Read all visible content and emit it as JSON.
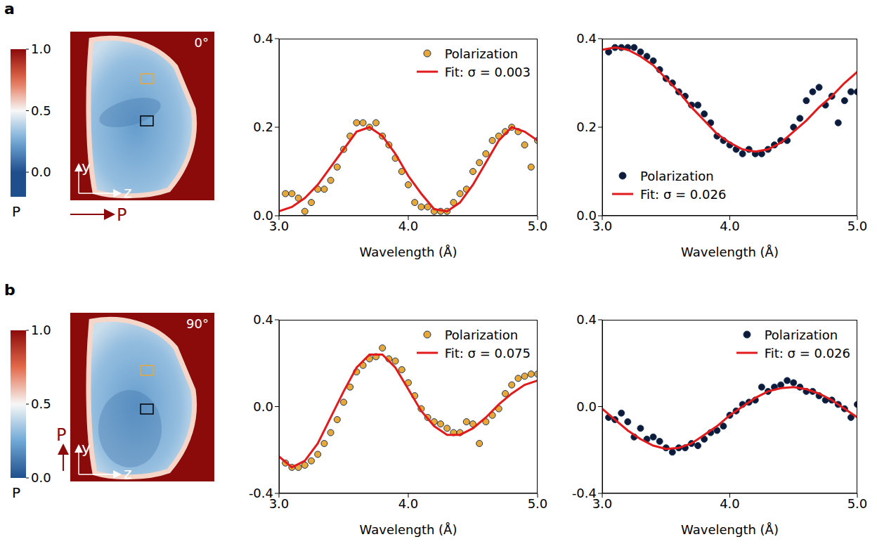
{
  "chart_data": [
    {
      "type": "image",
      "panel_label": "a",
      "annotation": {
        "value": 0,
        "label": "0°"
      },
      "axis_labels": {
        "x": "z",
        "y": "y"
      },
      "arrow_label": "P",
      "colorbar": {
        "label": "P",
        "range": [
          -0.2,
          1.0
        ],
        "ticks": [
          {
            "value": 0,
            "label": "0.0"
          },
          {
            "value": 0.5,
            "label": "0.5"
          },
          {
            "value": 1,
            "label": "1.0"
          }
        ]
      }
    },
    {
      "type": "scatter",
      "xlabel": "Wavelength (Å)",
      "xlim": [
        3.0,
        5.0
      ],
      "xticks": [
        {
          "value": 3,
          "label": "3.0"
        },
        {
          "value": 4,
          "label": "4.0"
        },
        {
          "value": 5,
          "label": "5.0"
        }
      ],
      "ylim": [
        0.0,
        0.4
      ],
      "yticks": [
        {
          "value": 0,
          "label": "0.0"
        },
        {
          "value": 0.2,
          "label": "0.2"
        },
        {
          "value": 0.4,
          "label": "0.4"
        }
      ],
      "legend": "upper right",
      "series": [
        {
          "name": "Polarization",
          "type": "scatter",
          "color": "#e8a838",
          "x": [
            3.05,
            3.1,
            3.15,
            3.2,
            3.25,
            3.3,
            3.35,
            3.4,
            3.45,
            3.5,
            3.55,
            3.6,
            3.65,
            3.7,
            3.75,
            3.8,
            3.85,
            3.9,
            3.95,
            4.0,
            4.05,
            4.1,
            4.15,
            4.2,
            4.25,
            4.3,
            4.35,
            4.4,
            4.45,
            4.5,
            4.55,
            4.6,
            4.65,
            4.7,
            4.75,
            4.8,
            4.85,
            4.9,
            4.95,
            5.0
          ],
          "values": [
            0.05,
            0.05,
            0.04,
            0.01,
            0.03,
            0.06,
            0.06,
            0.08,
            0.11,
            0.15,
            0.18,
            0.21,
            0.21,
            0.2,
            0.21,
            0.18,
            0.16,
            0.13,
            0.1,
            0.07,
            0.03,
            0.02,
            0.02,
            0.01,
            0.01,
            0.01,
            0.03,
            0.05,
            0.06,
            0.1,
            0.12,
            0.14,
            0.17,
            0.18,
            0.19,
            0.2,
            0.19,
            0.16,
            0.11,
            0.17
          ]
        },
        {
          "name": "Fit: σ = 0.003",
          "type": "line",
          "color": "#e31a1c",
          "x": [
            3.0,
            3.1,
            3.2,
            3.3,
            3.4,
            3.5,
            3.6,
            3.7,
            3.8,
            3.9,
            4.0,
            4.1,
            4.2,
            4.3,
            4.4,
            4.5,
            4.6,
            4.7,
            4.8,
            4.9,
            5.0
          ],
          "values": [
            0.01,
            0.02,
            0.04,
            0.07,
            0.11,
            0.15,
            0.19,
            0.2,
            0.18,
            0.14,
            0.09,
            0.05,
            0.015,
            0.01,
            0.03,
            0.07,
            0.12,
            0.17,
            0.2,
            0.19,
            0.17
          ]
        }
      ]
    },
    {
      "type": "scatter",
      "xlabel": "Wavelength (Å)",
      "xlim": [
        3.0,
        5.0
      ],
      "xticks": [
        {
          "value": 3,
          "label": "3.0"
        },
        {
          "value": 4,
          "label": "4.0"
        },
        {
          "value": 5,
          "label": "5.0"
        }
      ],
      "ylim": [
        0.0,
        0.4
      ],
      "yticks": [
        {
          "value": 0,
          "label": "0.0"
        },
        {
          "value": 0.2,
          "label": "0.2"
        },
        {
          "value": 0.4,
          "label": "0.4"
        }
      ],
      "legend": "lower left",
      "series": [
        {
          "name": "Polarization",
          "type": "scatter",
          "color": "#0d1a3a",
          "x": [
            3.05,
            3.1,
            3.15,
            3.2,
            3.25,
            3.3,
            3.35,
            3.4,
            3.45,
            3.5,
            3.55,
            3.6,
            3.65,
            3.7,
            3.75,
            3.8,
            3.85,
            3.9,
            3.95,
            4.0,
            4.05,
            4.1,
            4.15,
            4.2,
            4.25,
            4.3,
            4.35,
            4.4,
            4.45,
            4.5,
            4.55,
            4.6,
            4.65,
            4.7,
            4.75,
            4.8,
            4.85,
            4.9,
            4.95,
            5.0
          ],
          "values": [
            0.37,
            0.38,
            0.38,
            0.38,
            0.38,
            0.37,
            0.36,
            0.35,
            0.33,
            0.31,
            0.3,
            0.28,
            0.27,
            0.25,
            0.25,
            0.23,
            0.21,
            0.18,
            0.17,
            0.16,
            0.15,
            0.14,
            0.15,
            0.14,
            0.14,
            0.15,
            0.16,
            0.17,
            0.17,
            0.2,
            0.22,
            0.26,
            0.28,
            0.29,
            0.25,
            0.27,
            0.21,
            0.26,
            0.28,
            0.28
          ]
        },
        {
          "name": "Fit: σ = 0.026",
          "type": "line",
          "color": "#e31a1c",
          "x": [
            3.0,
            3.1,
            3.2,
            3.3,
            3.4,
            3.5,
            3.6,
            3.7,
            3.8,
            3.9,
            4.0,
            4.1,
            4.2,
            4.3,
            4.4,
            4.5,
            4.6,
            4.7,
            4.8,
            4.9,
            5.0
          ],
          "values": [
            0.375,
            0.38,
            0.375,
            0.36,
            0.34,
            0.31,
            0.28,
            0.245,
            0.215,
            0.185,
            0.165,
            0.15,
            0.145,
            0.15,
            0.165,
            0.19,
            0.215,
            0.245,
            0.27,
            0.3,
            0.325
          ]
        }
      ]
    },
    {
      "type": "image",
      "panel_label": "b",
      "annotation": {
        "value": 90,
        "label": "90°"
      },
      "axis_labels": {
        "x": "z",
        "y": "y"
      },
      "arrow_label": "P",
      "colorbar": {
        "label": "P",
        "range": [
          0.0,
          1.0
        ],
        "ticks": [
          {
            "value": 0,
            "label": "0.0"
          },
          {
            "value": 0.5,
            "label": "0.5"
          },
          {
            "value": 1,
            "label": "1.0"
          }
        ]
      }
    },
    {
      "type": "scatter",
      "xlabel": "Wavelength (Å)",
      "xlim": [
        3.0,
        5.0
      ],
      "xticks": [
        {
          "value": 3,
          "label": "3.0"
        },
        {
          "value": 4,
          "label": "4.0"
        },
        {
          "value": 5,
          "label": "5.0"
        }
      ],
      "ylim": [
        -0.4,
        0.4
      ],
      "yticks": [
        -0.4,
        {
          "value": 0,
          "label": "0.0"
        },
        0.4
      ],
      "legend": "upper right",
      "series": [
        {
          "name": "Polarization",
          "type": "scatter",
          "color": "#e8a838",
          "x": [
            3.05,
            3.1,
            3.15,
            3.2,
            3.25,
            3.3,
            3.35,
            3.4,
            3.45,
            3.5,
            3.55,
            3.6,
            3.65,
            3.7,
            3.75,
            3.8,
            3.85,
            3.9,
            3.95,
            4.0,
            4.05,
            4.1,
            4.15,
            4.2,
            4.25,
            4.3,
            4.35,
            4.4,
            4.45,
            4.5,
            4.55,
            4.6,
            4.65,
            4.7,
            4.75,
            4.8,
            4.85,
            4.9,
            4.95,
            5.0
          ],
          "values": [
            -0.26,
            -0.28,
            -0.28,
            -0.27,
            -0.25,
            -0.22,
            -0.17,
            -0.12,
            -0.06,
            0.02,
            0.09,
            0.16,
            0.19,
            0.22,
            0.23,
            0.27,
            0.22,
            0.21,
            0.17,
            0.11,
            0.05,
            -0.01,
            -0.05,
            -0.07,
            -0.08,
            -0.1,
            -0.12,
            -0.12,
            -0.07,
            -0.08,
            -0.17,
            -0.07,
            -0.04,
            -0.01,
            0.06,
            0.1,
            0.13,
            0.14,
            0.15,
            0.15
          ]
        },
        {
          "name": "Fit: σ = 0.075",
          "type": "line",
          "color": "#e31a1c",
          "x": [
            3.0,
            3.1,
            3.2,
            3.3,
            3.4,
            3.5,
            3.6,
            3.7,
            3.8,
            3.9,
            4.0,
            4.1,
            4.2,
            4.3,
            4.4,
            4.5,
            4.6,
            4.7,
            4.8,
            4.9,
            5.0
          ],
          "values": [
            -0.23,
            -0.28,
            -0.25,
            -0.17,
            -0.05,
            0.07,
            0.18,
            0.24,
            0.24,
            0.18,
            0.08,
            -0.02,
            -0.09,
            -0.13,
            -0.13,
            -0.1,
            -0.05,
            0.01,
            0.06,
            0.1,
            0.12
          ]
        }
      ]
    },
    {
      "type": "scatter",
      "xlabel": "Wavelength (Å)",
      "xlim": [
        3.0,
        5.0
      ],
      "xticks": [
        {
          "value": 3,
          "label": "3.0"
        },
        {
          "value": 4,
          "label": "4.0"
        },
        {
          "value": 5,
          "label": "5.0"
        }
      ],
      "ylim": [
        -0.4,
        0.4
      ],
      "yticks": [
        -0.4,
        {
          "value": 0,
          "label": "0.0"
        },
        0.4
      ],
      "legend": "upper right",
      "series": [
        {
          "name": "Polarization",
          "type": "scatter",
          "color": "#0d1a3a",
          "x": [
            3.05,
            3.1,
            3.15,
            3.2,
            3.25,
            3.3,
            3.35,
            3.4,
            3.45,
            3.5,
            3.55,
            3.6,
            3.65,
            3.7,
            3.75,
            3.8,
            3.85,
            3.9,
            3.95,
            4.0,
            4.05,
            4.1,
            4.15,
            4.2,
            4.25,
            4.3,
            4.35,
            4.4,
            4.45,
            4.5,
            4.55,
            4.6,
            4.65,
            4.7,
            4.75,
            4.8,
            4.85,
            4.9,
            4.95,
            5.0
          ],
          "values": [
            -0.05,
            -0.06,
            -0.03,
            -0.07,
            -0.14,
            -0.1,
            -0.15,
            -0.14,
            -0.16,
            -0.19,
            -0.21,
            -0.19,
            -0.19,
            -0.17,
            -0.18,
            -0.15,
            -0.12,
            -0.11,
            -0.09,
            -0.04,
            -0.02,
            0.01,
            0.02,
            0.03,
            0.09,
            0.07,
            0.09,
            0.1,
            0.12,
            0.11,
            0.09,
            0.07,
            0.07,
            0.05,
            0.03,
            0.03,
            0.01,
            -0.01,
            -0.05,
            0.01
          ]
        },
        {
          "name": "Fit: σ = 0.026",
          "type": "line",
          "color": "#e31a1c",
          "x": [
            3.0,
            3.1,
            3.2,
            3.3,
            3.4,
            3.5,
            3.6,
            3.7,
            3.8,
            3.9,
            4.0,
            4.1,
            4.2,
            4.3,
            4.4,
            4.5,
            4.6,
            4.7,
            4.8,
            4.9,
            5.0
          ],
          "values": [
            -0.01,
            -0.06,
            -0.11,
            -0.15,
            -0.18,
            -0.195,
            -0.19,
            -0.17,
            -0.13,
            -0.09,
            -0.04,
            0.0,
            0.04,
            0.07,
            0.085,
            0.09,
            0.08,
            0.06,
            0.03,
            -0.01,
            -0.05
          ]
        }
      ]
    }
  ]
}
